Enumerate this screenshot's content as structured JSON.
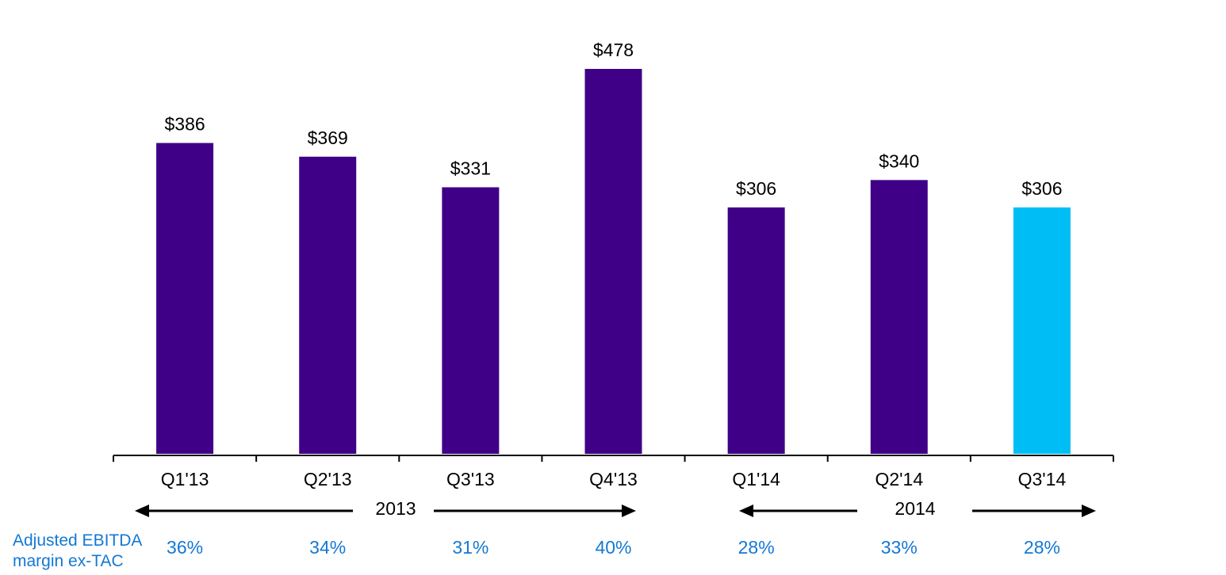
{
  "chart_data": {
    "type": "bar",
    "categories": [
      "Q1'13",
      "Q2'13",
      "Q3'13",
      "Q4'13",
      "Q1'14",
      "Q2'14",
      "Q3'14"
    ],
    "values": [
      386,
      369,
      331,
      478,
      306,
      340,
      306
    ],
    "value_labels": [
      "$386",
      "$369",
      "$331",
      "$478",
      "$306",
      "$340",
      "$306"
    ],
    "ylim": [
      0,
      478
    ],
    "grid": false,
    "bar_colors": [
      "#3f0087",
      "#3f0087",
      "#3f0087",
      "#3f0087",
      "#3f0087",
      "#3f0087",
      "#00bef5"
    ],
    "year_groups": [
      {
        "label": "2013",
        "categories": [
          "Q1'13",
          "Q2'13",
          "Q3'13",
          "Q4'13"
        ]
      },
      {
        "label": "2014",
        "categories": [
          "Q1'14",
          "Q2'14",
          "Q3'14"
        ]
      }
    ],
    "margin_row": {
      "label": "Adjusted EBITDA margin ex-TAC",
      "values": [
        "36%",
        "34%",
        "31%",
        "40%",
        "28%",
        "33%",
        "28%"
      ]
    }
  },
  "colors": {
    "bar": "#3f0087",
    "highlight_bar": "#00bef5",
    "margin_text": "#1478d4",
    "axis": "#000000"
  }
}
